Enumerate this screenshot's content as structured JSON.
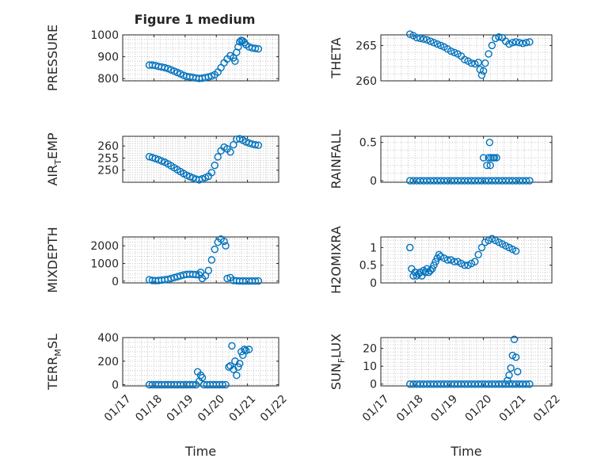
{
  "figure": {
    "title": "Figure 1 medium",
    "marker_color": "#0072bd",
    "x_tick_labels": [
      "01/17",
      "01/18",
      "01/19",
      "01/20",
      "01/21",
      "01/22"
    ]
  },
  "chart_data": [
    {
      "id": "pressure",
      "type": "scatter",
      "xlabel": "",
      "ylabel": "PRESSURE",
      "ylabel_sub": "",
      "xlim": [
        0,
        5
      ],
      "ylim": [
        790,
        1000
      ],
      "yticks": [
        800,
        900,
        1000
      ],
      "grid": true,
      "points": [
        [
          0.85,
          862
        ],
        [
          0.95,
          862
        ],
        [
          1.05,
          860
        ],
        [
          1.15,
          856
        ],
        [
          1.25,
          853
        ],
        [
          1.35,
          850
        ],
        [
          1.45,
          846
        ],
        [
          1.55,
          840
        ],
        [
          1.65,
          834
        ],
        [
          1.75,
          828
        ],
        [
          1.85,
          822
        ],
        [
          1.95,
          815
        ],
        [
          2.05,
          810
        ],
        [
          2.15,
          808
        ],
        [
          2.25,
          806
        ],
        [
          2.35,
          803
        ],
        [
          2.45,
          801
        ],
        [
          2.55,
          802
        ],
        [
          2.65,
          805
        ],
        [
          2.75,
          808
        ],
        [
          2.85,
          812
        ],
        [
          2.95,
          818
        ],
        [
          3.05,
          830
        ],
        [
          3.15,
          850
        ],
        [
          3.25,
          872
        ],
        [
          3.35,
          890
        ],
        [
          3.45,
          905
        ],
        [
          3.55,
          895
        ],
        [
          3.6,
          880
        ],
        [
          3.65,
          920
        ],
        [
          3.7,
          945
        ],
        [
          3.75,
          968
        ],
        [
          3.8,
          975
        ],
        [
          3.85,
          972
        ],
        [
          3.9,
          965
        ],
        [
          3.95,
          955
        ],
        [
          4.05,
          945
        ],
        [
          4.15,
          940
        ],
        [
          4.25,
          938
        ],
        [
          4.35,
          936
        ]
      ]
    },
    {
      "id": "theta",
      "type": "scatter",
      "xlabel": "",
      "ylabel": "THETA",
      "ylabel_sub": "",
      "xlim": [
        0,
        5
      ],
      "ylim": [
        260,
        266.5
      ],
      "yticks": [
        260,
        265
      ],
      "grid": true,
      "points": [
        [
          0.85,
          266.6
        ],
        [
          0.95,
          266.4
        ],
        [
          1.05,
          266.1
        ],
        [
          1.15,
          266.0
        ],
        [
          1.25,
          265.9
        ],
        [
          1.35,
          265.8
        ],
        [
          1.45,
          265.6
        ],
        [
          1.55,
          265.4
        ],
        [
          1.65,
          265.2
        ],
        [
          1.75,
          265.0
        ],
        [
          1.85,
          264.8
        ],
        [
          1.95,
          264.5
        ],
        [
          2.05,
          264.2
        ],
        [
          2.15,
          264.0
        ],
        [
          2.25,
          263.8
        ],
        [
          2.35,
          263.5
        ],
        [
          2.45,
          263.0
        ],
        [
          2.55,
          262.8
        ],
        [
          2.65,
          262.5
        ],
        [
          2.75,
          262.4
        ],
        [
          2.85,
          262.6
        ],
        [
          2.9,
          261.6
        ],
        [
          2.95,
          260.8
        ],
        [
          3.0,
          261.4
        ],
        [
          3.05,
          262.5
        ],
        [
          3.15,
          263.8
        ],
        [
          3.25,
          265.0
        ],
        [
          3.35,
          266.0
        ],
        [
          3.45,
          266.2
        ],
        [
          3.55,
          266.1
        ],
        [
          3.65,
          265.6
        ],
        [
          3.75,
          265.2
        ],
        [
          3.85,
          265.4
        ],
        [
          3.95,
          265.5
        ],
        [
          4.05,
          265.4
        ],
        [
          4.15,
          265.3
        ],
        [
          4.25,
          265.4
        ],
        [
          4.35,
          265.5
        ]
      ]
    },
    {
      "id": "air_temp",
      "type": "scatter",
      "xlabel": "",
      "ylabel": "AIR",
      "ylabel_sub": "T",
      "ylabel_suffix": "EMP",
      "xlim": [
        0,
        5
      ],
      "ylim": [
        245,
        264
      ],
      "yticks": [
        250,
        255,
        260
      ],
      "grid": true,
      "points": [
        [
          0.85,
          255.6
        ],
        [
          0.95,
          255.2
        ],
        [
          1.05,
          254.8
        ],
        [
          1.15,
          254.3
        ],
        [
          1.25,
          253.8
        ],
        [
          1.35,
          253.3
        ],
        [
          1.45,
          252.6
        ],
        [
          1.55,
          251.8
        ],
        [
          1.65,
          251.0
        ],
        [
          1.75,
          250.2
        ],
        [
          1.85,
          249.4
        ],
        [
          1.95,
          248.6
        ],
        [
          2.05,
          247.9
        ],
        [
          2.15,
          247.3
        ],
        [
          2.25,
          246.8
        ],
        [
          2.35,
          246.3
        ],
        [
          2.45,
          246.0
        ],
        [
          2.55,
          246.4
        ],
        [
          2.65,
          246.9
        ],
        [
          2.75,
          247.5
        ],
        [
          2.85,
          249.0
        ],
        [
          2.95,
          252.0
        ],
        [
          3.05,
          255.5
        ],
        [
          3.15,
          258.0
        ],
        [
          3.25,
          259.5
        ],
        [
          3.35,
          258.8
        ],
        [
          3.45,
          257.5
        ],
        [
          3.55,
          260.5
        ],
        [
          3.65,
          262.8
        ],
        [
          3.75,
          263.0
        ],
        [
          3.85,
          262.4
        ],
        [
          3.95,
          261.7
        ],
        [
          4.05,
          261.2
        ],
        [
          4.15,
          260.8
        ],
        [
          4.25,
          260.5
        ],
        [
          4.35,
          260.3
        ]
      ]
    },
    {
      "id": "rainfall",
      "type": "scatter",
      "xlabel": "",
      "ylabel": "RAINFALL",
      "ylabel_sub": "",
      "xlim": [
        0,
        5
      ],
      "ylim": [
        -0.02,
        0.58
      ],
      "yticks": [
        0,
        0.5
      ],
      "grid": true,
      "points": [
        [
          0.85,
          0
        ],
        [
          0.95,
          0
        ],
        [
          1.05,
          0
        ],
        [
          1.15,
          0
        ],
        [
          1.25,
          0
        ],
        [
          1.35,
          0
        ],
        [
          1.45,
          0
        ],
        [
          1.55,
          0
        ],
        [
          1.65,
          0
        ],
        [
          1.75,
          0
        ],
        [
          1.85,
          0
        ],
        [
          1.95,
          0
        ],
        [
          2.05,
          0
        ],
        [
          2.15,
          0
        ],
        [
          2.25,
          0
        ],
        [
          2.35,
          0
        ],
        [
          2.45,
          0
        ],
        [
          2.55,
          0
        ],
        [
          2.65,
          0
        ],
        [
          2.75,
          0
        ],
        [
          2.85,
          0
        ],
        [
          2.95,
          0
        ],
        [
          3.05,
          0
        ],
        [
          3.15,
          0
        ],
        [
          3.25,
          0
        ],
        [
          3.35,
          0
        ],
        [
          3.45,
          0
        ],
        [
          3.55,
          0
        ],
        [
          3.65,
          0
        ],
        [
          3.75,
          0
        ],
        [
          3.85,
          0
        ],
        [
          3.95,
          0
        ],
        [
          4.05,
          0
        ],
        [
          4.15,
          0
        ],
        [
          4.25,
          0
        ],
        [
          4.35,
          0
        ],
        [
          3.0,
          0.3
        ],
        [
          3.15,
          0.3
        ],
        [
          3.22,
          0.3
        ],
        [
          3.18,
          0.5
        ],
        [
          3.28,
          0.3
        ],
        [
          3.32,
          0.3
        ],
        [
          3.2,
          0.2
        ],
        [
          3.38,
          0.3
        ],
        [
          3.1,
          0.2
        ]
      ]
    },
    {
      "id": "mixdepth",
      "type": "scatter",
      "xlabel": "",
      "ylabel": "MIXDEPTH",
      "ylabel_sub": "",
      "xlim": [
        0,
        5
      ],
      "ylim": [
        -100,
        2500
      ],
      "yticks": [
        0,
        1000,
        2000
      ],
      "grid": true,
      "points": [
        [
          0.85,
          80
        ],
        [
          0.95,
          40
        ],
        [
          1.05,
          30
        ],
        [
          1.15,
          40
        ],
        [
          1.25,
          60
        ],
        [
          1.35,
          80
        ],
        [
          1.45,
          100
        ],
        [
          1.55,
          150
        ],
        [
          1.65,
          200
        ],
        [
          1.75,
          250
        ],
        [
          1.85,
          300
        ],
        [
          1.95,
          350
        ],
        [
          2.05,
          380
        ],
        [
          2.15,
          390
        ],
        [
          2.25,
          380
        ],
        [
          2.35,
          370
        ],
        [
          2.45,
          350
        ],
        [
          2.5,
          500
        ],
        [
          2.55,
          150
        ],
        [
          2.65,
          300
        ],
        [
          2.75,
          600
        ],
        [
          2.85,
          1200
        ],
        [
          2.95,
          1800
        ],
        [
          3.05,
          2200
        ],
        [
          3.15,
          2380
        ],
        [
          3.25,
          2250
        ],
        [
          3.3,
          2000
        ],
        [
          3.35,
          150
        ],
        [
          3.45,
          200
        ],
        [
          3.55,
          40
        ],
        [
          3.65,
          20
        ],
        [
          3.75,
          10
        ],
        [
          3.85,
          10
        ],
        [
          3.95,
          10
        ],
        [
          4.05,
          10
        ],
        [
          4.15,
          10
        ],
        [
          4.25,
          10
        ],
        [
          4.35,
          10
        ]
      ]
    },
    {
      "id": "h2omixra",
      "type": "scatter",
      "xlabel": "",
      "ylabel": "H2OMIXRA",
      "ylabel_sub": "",
      "xlim": [
        0,
        5
      ],
      "ylim": [
        0,
        1.3
      ],
      "yticks": [
        0,
        0.5,
        1
      ],
      "grid": true,
      "points": [
        [
          0.85,
          1.0
        ],
        [
          0.9,
          0.4
        ],
        [
          0.95,
          0.2
        ],
        [
          1.0,
          0.3
        ],
        [
          1.05,
          0.2
        ],
        [
          1.1,
          0.25
        ],
        [
          1.15,
          0.3
        ],
        [
          1.2,
          0.2
        ],
        [
          1.25,
          0.35
        ],
        [
          1.3,
          0.3
        ],
        [
          1.35,
          0.4
        ],
        [
          1.4,
          0.3
        ],
        [
          1.45,
          0.35
        ],
        [
          1.5,
          0.4
        ],
        [
          1.55,
          0.5
        ],
        [
          1.6,
          0.6
        ],
        [
          1.65,
          0.7
        ],
        [
          1.7,
          0.8
        ],
        [
          1.75,
          0.75
        ],
        [
          1.85,
          0.7
        ],
        [
          1.95,
          0.65
        ],
        [
          2.05,
          0.65
        ],
        [
          2.15,
          0.6
        ],
        [
          2.25,
          0.6
        ],
        [
          2.35,
          0.55
        ],
        [
          2.45,
          0.5
        ],
        [
          2.55,
          0.5
        ],
        [
          2.65,
          0.55
        ],
        [
          2.75,
          0.6
        ],
        [
          2.85,
          0.8
        ],
        [
          2.95,
          1.0
        ],
        [
          3.05,
          1.15
        ],
        [
          3.15,
          1.2
        ],
        [
          3.25,
          1.25
        ],
        [
          3.35,
          1.2
        ],
        [
          3.45,
          1.15
        ],
        [
          3.55,
          1.1
        ],
        [
          3.65,
          1.05
        ],
        [
          3.75,
          1.0
        ],
        [
          3.85,
          0.95
        ],
        [
          3.95,
          0.9
        ]
      ]
    },
    {
      "id": "terr_msl",
      "type": "scatter",
      "xlabel": "Time",
      "ylabel": "TERR",
      "ylabel_sub": "M",
      "ylabel_suffix": "SL",
      "xlim": [
        0,
        5
      ],
      "ylim": [
        -10,
        400
      ],
      "yticks": [
        0,
        200,
        400
      ],
      "grid": true,
      "points": [
        [
          0.85,
          0
        ],
        [
          0.95,
          0
        ],
        [
          1.05,
          0
        ],
        [
          1.15,
          0
        ],
        [
          1.25,
          0
        ],
        [
          1.35,
          0
        ],
        [
          1.45,
          0
        ],
        [
          1.55,
          0
        ],
        [
          1.65,
          0
        ],
        [
          1.75,
          0
        ],
        [
          1.85,
          0
        ],
        [
          1.95,
          0
        ],
        [
          2.05,
          0
        ],
        [
          2.15,
          0
        ],
        [
          2.25,
          0
        ],
        [
          2.35,
          0
        ],
        [
          2.4,
          110
        ],
        [
          2.45,
          30
        ],
        [
          2.5,
          80
        ],
        [
          2.55,
          60
        ],
        [
          2.6,
          0
        ],
        [
          2.7,
          0
        ],
        [
          2.8,
          0
        ],
        [
          2.9,
          0
        ],
        [
          3.0,
          0
        ],
        [
          3.1,
          0
        ],
        [
          3.2,
          0
        ],
        [
          3.3,
          0
        ],
        [
          3.4,
          150
        ],
        [
          3.45,
          160
        ],
        [
          3.5,
          330
        ],
        [
          3.55,
          130
        ],
        [
          3.6,
          200
        ],
        [
          3.65,
          80
        ],
        [
          3.7,
          150
        ],
        [
          3.75,
          180
        ],
        [
          3.8,
          280
        ],
        [
          3.85,
          250
        ],
        [
          3.9,
          300
        ],
        [
          3.95,
          290
        ],
        [
          4.05,
          300
        ]
      ]
    },
    {
      "id": "sun_flux",
      "type": "scatter",
      "xlabel": "Time",
      "ylabel": "SUN",
      "ylabel_sub": "F",
      "ylabel_suffix": "LUX",
      "xlim": [
        0,
        5
      ],
      "ylim": [
        -1,
        26
      ],
      "yticks": [
        0,
        10,
        20
      ],
      "grid": true,
      "points": [
        [
          0.85,
          0
        ],
        [
          0.95,
          0
        ],
        [
          1.05,
          0
        ],
        [
          1.15,
          0
        ],
        [
          1.25,
          0
        ],
        [
          1.35,
          0
        ],
        [
          1.45,
          0
        ],
        [
          1.55,
          0
        ],
        [
          1.65,
          0
        ],
        [
          1.75,
          0
        ],
        [
          1.85,
          0
        ],
        [
          1.95,
          0
        ],
        [
          2.05,
          0
        ],
        [
          2.15,
          0
        ],
        [
          2.25,
          0
        ],
        [
          2.35,
          0
        ],
        [
          2.45,
          0
        ],
        [
          2.55,
          0
        ],
        [
          2.65,
          0
        ],
        [
          2.75,
          0
        ],
        [
          2.85,
          0
        ],
        [
          2.95,
          0
        ],
        [
          3.05,
          0
        ],
        [
          3.15,
          0
        ],
        [
          3.25,
          0
        ],
        [
          3.35,
          0
        ],
        [
          3.45,
          0
        ],
        [
          3.55,
          0
        ],
        [
          3.65,
          0
        ],
        [
          3.75,
          0
        ],
        [
          3.85,
          0
        ],
        [
          3.95,
          0
        ],
        [
          4.05,
          0
        ],
        [
          4.15,
          0
        ],
        [
          4.25,
          0
        ],
        [
          4.35,
          0
        ],
        [
          3.7,
          2
        ],
        [
          3.75,
          5
        ],
        [
          3.8,
          9
        ],
        [
          3.85,
          16
        ],
        [
          3.9,
          25
        ],
        [
          3.95,
          15
        ],
        [
          4.0,
          7
        ]
      ]
    }
  ]
}
